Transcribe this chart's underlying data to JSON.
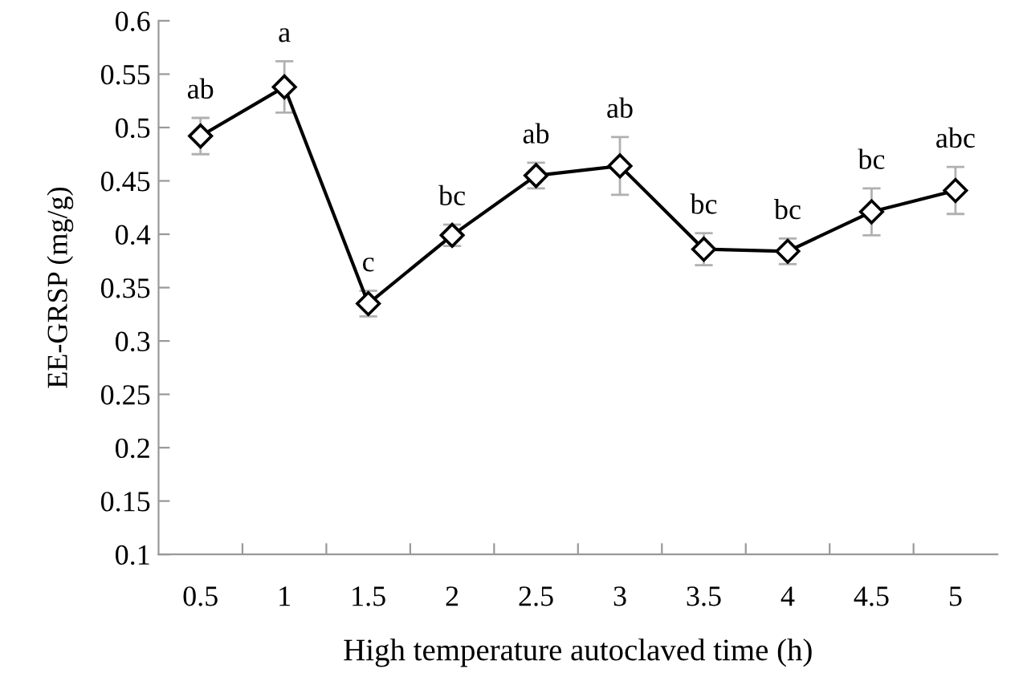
{
  "chart_data": {
    "type": "line",
    "xlabel": "High temperature autoclaved time (h)",
    "ylabel": "EE-GRSP (mg/g)",
    "categories": [
      "0.5",
      "1",
      "1.5",
      "2",
      "2.5",
      "3",
      "3.5",
      "4",
      "4.5",
      "5"
    ],
    "series": [
      {
        "color": "#000000",
        "values": [
          0.492,
          0.538,
          0.335,
          0.399,
          0.455,
          0.464,
          0.386,
          0.384,
          0.421,
          0.441
        ],
        "errors": [
          0.017,
          0.024,
          0.012,
          0.01,
          0.012,
          0.027,
          0.015,
          0.012,
          0.022,
          0.022
        ]
      }
    ],
    "ylim": [
      0.1,
      0.6
    ],
    "yticks": [
      0.1,
      0.15,
      0.2,
      0.25,
      0.3,
      0.35,
      0.4,
      0.45,
      0.5,
      0.55,
      0.6
    ],
    "marker": "diamond",
    "line_style": "solid",
    "annotations": [
      {
        "text": "ab",
        "x": "0.5",
        "y": 0.492
      },
      {
        "text": "a",
        "x": "1",
        "y": 0.538
      },
      {
        "text": "c",
        "x": "1.5",
        "y": 0.335
      },
      {
        "text": "bc",
        "x": "2",
        "y": 0.399
      },
      {
        "text": "ab",
        "x": "2.5",
        "y": 0.455
      },
      {
        "text": "ab",
        "x": "3",
        "y": 0.464
      },
      {
        "text": "bc",
        "x": "3.5",
        "y": 0.386
      },
      {
        "text": "bc",
        "x": "4",
        "y": 0.384
      },
      {
        "text": "bc",
        "x": "4.5",
        "y": 0.421
      },
      {
        "text": "abc",
        "x": "5",
        "y": 0.441
      }
    ]
  }
}
